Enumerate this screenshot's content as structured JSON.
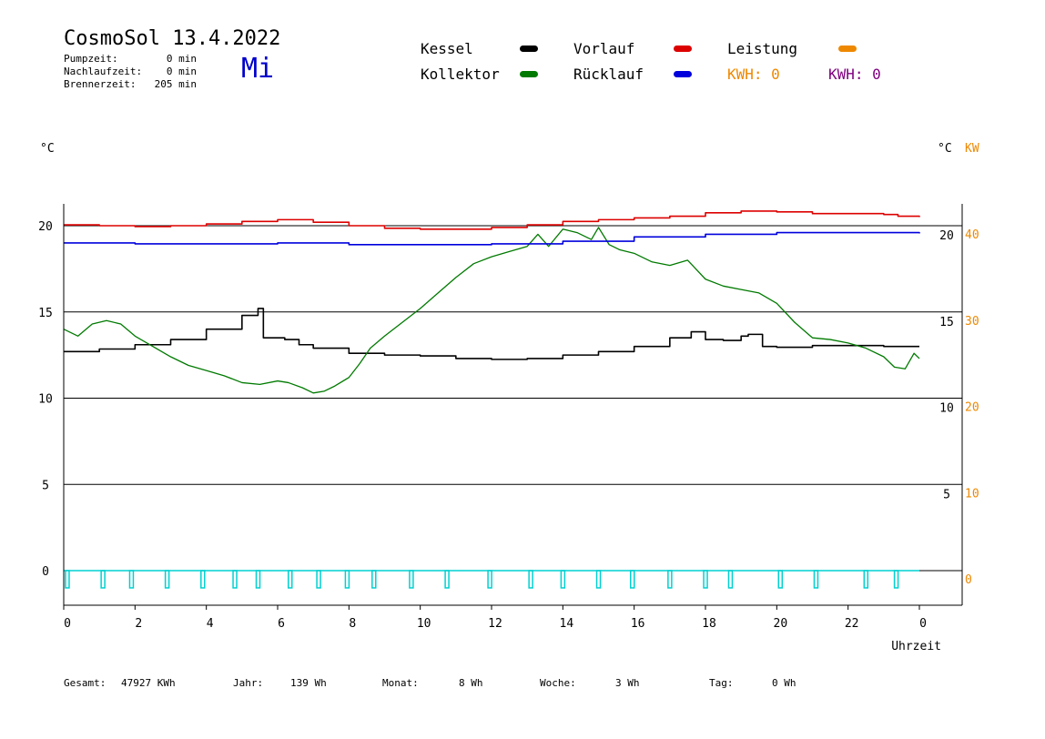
{
  "header": {
    "title": "CosmoSol 13.4.2022",
    "day": "Mi",
    "stats": [
      {
        "label": "Pumpzeit:",
        "value": "0 min"
      },
      {
        "label": "Nachlaufzeit:",
        "value": "0 min"
      },
      {
        "label": "Brennerzeit:",
        "value": "205 min"
      }
    ]
  },
  "legend": {
    "kessel": "Kessel",
    "kollektor": "Kollektor",
    "vorlauf": "Vorlauf",
    "ruecklauf": "Rücklauf",
    "leistung": "Leistung",
    "kwh_orange": "KWH: 0",
    "kwh_purple": "KWH: 0"
  },
  "colors": {
    "kessel": "#000000",
    "kollektor": "#007a00",
    "vorlauf": "#dd0000",
    "ruecklauf": "#0000dd",
    "leistung": "#ee8800",
    "pump": "#00d0d0",
    "purple": "#800080",
    "day": "#0000cc"
  },
  "chart_data": {
    "type": "line",
    "xlabel": "Uhrzeit",
    "ylabel_left": "°C",
    "ylabel_right": "°C",
    "ylabel_right2": "KW",
    "x_ticks": [
      "0",
      "2",
      "4",
      "6",
      "8",
      "10",
      "12",
      "14",
      "16",
      "18",
      "20",
      "22",
      "0"
    ],
    "xlim": [
      0,
      24
    ],
    "left_ticks": [
      "20",
      "15",
      "10",
      "5",
      "0"
    ],
    "right_ticks": [
      "20",
      "15",
      "10",
      "5"
    ],
    "right2_ticks": [
      "40",
      "30",
      "20",
      "10",
      "0"
    ],
    "ylim": [
      -1.5,
      22
    ],
    "grid_values": [
      20,
      15,
      10,
      5,
      0
    ],
    "series": [
      {
        "name": "Kessel",
        "color": "#000000",
        "step": true,
        "points": [
          [
            0,
            12.7
          ],
          [
            1,
            12.85
          ],
          [
            2,
            13.1
          ],
          [
            3,
            13.4
          ],
          [
            4,
            14.0
          ],
          [
            5,
            14.8
          ],
          [
            5.45,
            15.2
          ],
          [
            5.6,
            13.5
          ],
          [
            6.2,
            13.4
          ],
          [
            6.6,
            13.1
          ],
          [
            7,
            12.9
          ],
          [
            7.6,
            12.9
          ],
          [
            8,
            12.6
          ],
          [
            9,
            12.5
          ],
          [
            10,
            12.45
          ],
          [
            11,
            12.3
          ],
          [
            12,
            12.25
          ],
          [
            13,
            12.3
          ],
          [
            14,
            12.5
          ],
          [
            15,
            12.7
          ],
          [
            16,
            13.0
          ],
          [
            17,
            13.5
          ],
          [
            17.6,
            13.85
          ],
          [
            18,
            13.4
          ],
          [
            18.5,
            13.35
          ],
          [
            19,
            13.6
          ],
          [
            19.2,
            13.7
          ],
          [
            19.6,
            13.0
          ],
          [
            20,
            12.95
          ],
          [
            21,
            13.05
          ],
          [
            22,
            13.05
          ],
          [
            23,
            13.0
          ],
          [
            24,
            13.0
          ]
        ]
      },
      {
        "name": "Kollektor",
        "color": "#007a00",
        "step": false,
        "points": [
          [
            0,
            14.0
          ],
          [
            0.4,
            13.6
          ],
          [
            0.8,
            14.3
          ],
          [
            1.2,
            14.5
          ],
          [
            1.6,
            14.3
          ],
          [
            2.0,
            13.6
          ],
          [
            2.5,
            13.0
          ],
          [
            3.0,
            12.4
          ],
          [
            3.5,
            11.9
          ],
          [
            4.0,
            11.6
          ],
          [
            4.5,
            11.3
          ],
          [
            5.0,
            10.9
          ],
          [
            5.5,
            10.8
          ],
          [
            6.0,
            11.0
          ],
          [
            6.3,
            10.9
          ],
          [
            6.7,
            10.6
          ],
          [
            7.0,
            10.3
          ],
          [
            7.3,
            10.4
          ],
          [
            7.6,
            10.7
          ],
          [
            8.0,
            11.2
          ],
          [
            8.3,
            12.0
          ],
          [
            8.6,
            12.9
          ],
          [
            9.0,
            13.6
          ],
          [
            9.5,
            14.4
          ],
          [
            10,
            15.2
          ],
          [
            10.5,
            16.1
          ],
          [
            11,
            17.0
          ],
          [
            11.5,
            17.8
          ],
          [
            12,
            18.2
          ],
          [
            12.5,
            18.5
          ],
          [
            13.0,
            18.8
          ],
          [
            13.3,
            19.5
          ],
          [
            13.6,
            18.8
          ],
          [
            14.0,
            19.8
          ],
          [
            14.4,
            19.6
          ],
          [
            14.8,
            19.2
          ],
          [
            15.0,
            19.9
          ],
          [
            15.3,
            18.9
          ],
          [
            15.6,
            18.6
          ],
          [
            16.0,
            18.4
          ],
          [
            16.5,
            17.9
          ],
          [
            17.0,
            17.7
          ],
          [
            17.5,
            18.0
          ],
          [
            18.0,
            16.9
          ],
          [
            18.5,
            16.5
          ],
          [
            19.0,
            16.3
          ],
          [
            19.5,
            16.1
          ],
          [
            20.0,
            15.5
          ],
          [
            20.5,
            14.4
          ],
          [
            21.0,
            13.5
          ],
          [
            21.5,
            13.4
          ],
          [
            22.0,
            13.2
          ],
          [
            22.5,
            12.9
          ],
          [
            23.0,
            12.4
          ],
          [
            23.3,
            11.8
          ],
          [
            23.6,
            11.7
          ],
          [
            23.85,
            12.6
          ],
          [
            24.0,
            12.3
          ]
        ]
      },
      {
        "name": "Vorlauf",
        "color": "#dd0000",
        "step": true,
        "points": [
          [
            0,
            20.05
          ],
          [
            1,
            20.0
          ],
          [
            2,
            19.95
          ],
          [
            3,
            20.0
          ],
          [
            4,
            20.1
          ],
          [
            5,
            20.25
          ],
          [
            6,
            20.35
          ],
          [
            7,
            20.2
          ],
          [
            8,
            20.0
          ],
          [
            9,
            19.85
          ],
          [
            10,
            19.8
          ],
          [
            11,
            19.8
          ],
          [
            12,
            19.9
          ],
          [
            13,
            20.05
          ],
          [
            14,
            20.25
          ],
          [
            15,
            20.35
          ],
          [
            16,
            20.45
          ],
          [
            17,
            20.55
          ],
          [
            18,
            20.75
          ],
          [
            19,
            20.85
          ],
          [
            20,
            20.8
          ],
          [
            21,
            20.7
          ],
          [
            22,
            20.7
          ],
          [
            23,
            20.65
          ],
          [
            23.4,
            20.55
          ],
          [
            24,
            20.5
          ]
        ]
      },
      {
        "name": "Rücklauf",
        "color": "#0000dd",
        "step": true,
        "points": [
          [
            0,
            19.0
          ],
          [
            2,
            18.95
          ],
          [
            4,
            18.95
          ],
          [
            6,
            19.0
          ],
          [
            8,
            18.9
          ],
          [
            10,
            18.9
          ],
          [
            12,
            18.95
          ],
          [
            14,
            19.1
          ],
          [
            16,
            19.35
          ],
          [
            18,
            19.5
          ],
          [
            20,
            19.6
          ],
          [
            22,
            19.6
          ],
          [
            24,
            19.55
          ]
        ]
      }
    ],
    "pump_pulses": [
      0.05,
      1.05,
      1.85,
      2.85,
      3.85,
      4.75,
      5.4,
      6.3,
      7.1,
      7.9,
      8.65,
      9.7,
      10.7,
      11.9,
      13.05,
      13.95,
      14.95,
      15.9,
      16.95,
      17.95,
      18.65,
      20.05,
      21.05,
      22.45,
      23.3
    ],
    "pump_range": [
      0,
      -1.0
    ]
  },
  "totals": [
    {
      "label": "Gesamt:",
      "value": "47927 KWh"
    },
    {
      "label": "Jahr:",
      "value": "139 Wh"
    },
    {
      "label": "Monat:",
      "value": "8 Wh"
    },
    {
      "label": "Woche:",
      "value": "3 Wh"
    },
    {
      "label": "Tag:",
      "value": "0 Wh"
    }
  ]
}
